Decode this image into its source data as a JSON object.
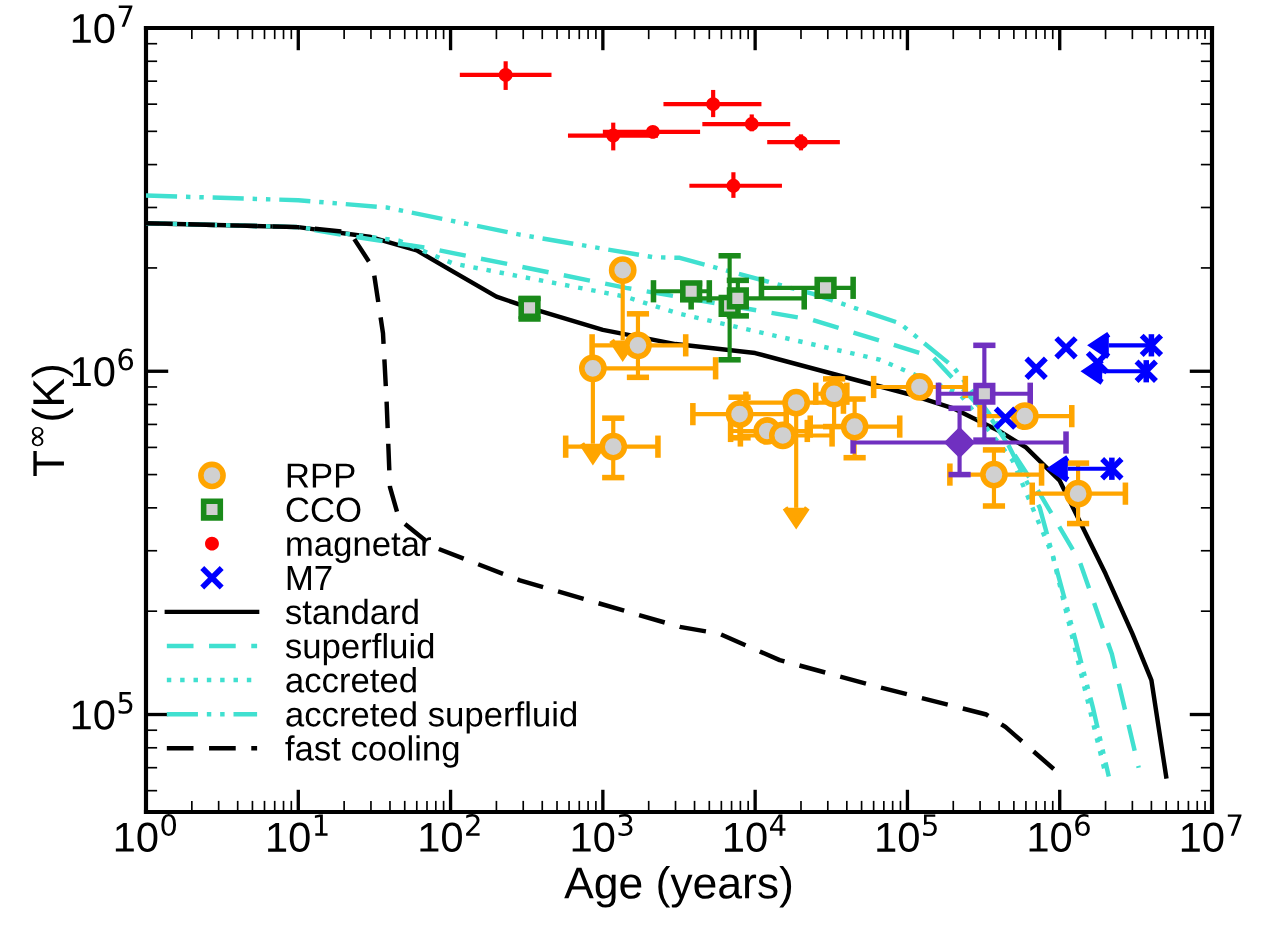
{
  "chart_data": {
    "type": "scatter",
    "xlabel": "Age (years)",
    "ylabel": "T$^{∞}$(K)",
    "log": "xy",
    "xlim": [
      1,
      10000000
    ],
    "ylim": [
      52000,
      10000000
    ],
    "xticks": [
      {
        "value": 1,
        "label": "10$^{0}$"
      },
      {
        "value": 10,
        "label": "10$^{1}$"
      },
      {
        "value": 100,
        "label": "10$^{2}$"
      },
      {
        "value": 1000,
        "label": "10$^{3}$"
      },
      {
        "value": 10000,
        "label": "10$^{4}$"
      },
      {
        "value": 100000,
        "label": "10$^{5}$"
      },
      {
        "value": 1000000,
        "label": "10$^{6}$"
      },
      {
        "value": 10000000,
        "label": "10$^{7}$"
      }
    ],
    "yticks": [
      {
        "value": 100000,
        "label": "10$^{5}$"
      },
      {
        "value": 1000000,
        "label": "10$^{6}$"
      },
      {
        "value": 10000000,
        "label": "10$^{7}$"
      }
    ],
    "grid": false,
    "legend": "bottom left",
    "series": [
      {
        "name": "RPP",
        "type": "scatter",
        "marker": "circle",
        "color": "#ffa500",
        "x": [
          1350,
          1700,
          860,
          1170,
          7900,
          18600,
          12000,
          15200,
          33000,
          45000,
          120000,
          590000,
          370000,
          1320000
        ],
        "values": [
          1970000,
          1190000,
          1020000,
          603000,
          750000,
          810000,
          670000,
          650000,
          860000,
          690000,
          900000,
          740000,
          500000,
          440000
        ],
        "errors": [
          [
            1230000,
            1970000
          ],
          [
            960000,
            1470000
          ],
          [
            615000,
            1020000
          ],
          [
            490000,
            730000
          ],
          [
            640000,
            840000
          ],
          [
            400000,
            810000
          ],
          null,
          null,
          [
            690000,
            950000
          ],
          [
            560000,
            830000
          ],
          null,
          null,
          [
            405000,
            590000
          ],
          [
            360000,
            540000
          ]
        ],
        "xerrors": [
          null,
          [
            850,
            3500
          ],
          [
            860,
            5500
          ],
          [
            570,
            2300
          ],
          [
            3900,
            16000
          ],
          [
            8700,
            38000
          ],
          [
            6900,
            22000
          ],
          [
            8000,
            32000
          ],
          [
            25000,
            40000
          ],
          [
            23000,
            89000
          ],
          [
            60000,
            240000
          ],
          [
            300000,
            1200000
          ],
          [
            190000,
            760000
          ],
          [
            660000,
            2700000
          ]
        ]
      },
      {
        "name": "CCO",
        "type": "scatter",
        "marker": "square",
        "color": "#1a8a1a",
        "x": [
          330,
          3800,
          6800,
          7700,
          29000
        ],
        "values": [
          1530000,
          1710000,
          1550000,
          1630000,
          1750000
        ],
        "errors": [
          [
            1420000,
            1630000
          ],
          [
            1620000,
            1800000
          ],
          [
            1080000,
            2170000
          ],
          [
            1450000,
            1840000
          ],
          null
        ],
        "xerrors": [
          null,
          [
            2150,
            5000
          ],
          null,
          [
            3800,
            21000
          ],
          [
            11000,
            44000
          ]
        ]
      },
      {
        "name": "magnetar",
        "type": "scatter",
        "marker": "dot",
        "color": "#ff0000",
        "x": [
          230,
          1170,
          2130,
          5300,
          9500,
          20000,
          7200
        ],
        "values": [
          7300000,
          4860000,
          4980000,
          6000000,
          5250000,
          4650000,
          3470000
        ],
        "errors": [
          [
            6600000,
            8000000
          ],
          [
            4400000,
            5300000
          ],
          null,
          [
            5500000,
            6600000
          ],
          [
            5000000,
            5600000
          ],
          [
            4400000,
            4900000
          ],
          [
            3200000,
            3800000
          ]
        ],
        "xerrors": [
          [
            115,
            460
          ],
          [
            590,
            2300
          ],
          [
            1000,
            4350
          ],
          [
            2500,
            11000
          ],
          [
            4500,
            17000
          ],
          [
            12000,
            36000
          ],
          [
            3700,
            15000
          ]
        ]
      },
      {
        "name": "M7",
        "type": "scatter",
        "marker": "cross",
        "color": "#0000ff",
        "x": [
          700000,
          1100000,
          1770000,
          4000000,
          3700000,
          440000,
          2200000
        ],
        "values": [
          1020000,
          1170000,
          1060000,
          1190000,
          1000000,
          730000,
          520000
        ],
        "xerrors": [
          null,
          null,
          null,
          [
            2100000,
            4000000
          ],
          [
            1900000,
            3700000
          ],
          null,
          [
            1130000,
            2200000
          ]
        ]
      },
      {
        "type": "scatter",
        "marker": "square",
        "color": "#7030c0",
        "x": [
          320000
        ],
        "values": [
          860000
        ],
        "errors": [
          [
            630000,
            1190000
          ]
        ],
        "xerrors": [
          [
            160000,
            640000
          ]
        ]
      },
      {
        "type": "scatter",
        "marker": "diamond",
        "color": "#7030c0",
        "x": [
          220000
        ],
        "values": [
          620000
        ],
        "errors": [
          [
            500000,
            780000
          ]
        ],
        "xerrors": [
          [
            44000,
            1100000
          ]
        ]
      },
      {
        "name": "standard",
        "type": "line",
        "line_style": "solid",
        "color": "#000000",
        "x": [
          1,
          10,
          30,
          60,
          100,
          200,
          330,
          1000,
          3000,
          10000,
          100000,
          200000,
          400000,
          600000,
          1000000,
          2000000,
          3000000,
          4000000,
          5000000
        ],
        "values": [
          2700000,
          2630000,
          2460000,
          2250000,
          1970000,
          1650000,
          1530000,
          1320000,
          1200000,
          1130000,
          860000,
          780000,
          670000,
          600000,
          480000,
          257000,
          172000,
          126000,
          66000
        ]
      },
      {
        "name": "superfluid",
        "type": "line",
        "line_style": "dashed",
        "color": "#40e0d0",
        "x": [
          1,
          10,
          19,
          69,
          285,
          1420,
          24000,
          147000,
          360000,
          740000,
          1350000,
          2200000,
          3300000
        ],
        "values": [
          2700000,
          2630000,
          2500000,
          2290000,
          2020000,
          1750000,
          1410000,
          1100000,
          720000,
          440000,
          280000,
          150000,
          70000
        ]
      },
      {
        "name": "accreted",
        "type": "line",
        "line_style": "dotted",
        "color": "#40e0d0",
        "x": [
          1,
          10,
          30,
          46,
          104,
          1400,
          3200,
          66000,
          220000,
          490000,
          900000,
          1350000,
          2000000
        ],
        "values": [
          2700000,
          2630000,
          2460000,
          2400000,
          2060000,
          1650000,
          1470000,
          1080000,
          860000,
          550000,
          290000,
          137000,
          67000
        ]
      },
      {
        "name": "accreted superfluid",
        "type": "line",
        "line_style": "dashdotdot",
        "color": "#40e0d0",
        "x": [
          1,
          10,
          38,
          285,
          2130,
          3200,
          24000,
          89000,
          200000,
          400000,
          740000,
          1100000,
          1650000,
          2100000
        ],
        "values": [
          3250000,
          3150000,
          3000000,
          2500000,
          2150000,
          2140000,
          1680000,
          1380000,
          1030000,
          690000,
          400000,
          210000,
          105000,
          66000
        ]
      },
      {
        "name": "fast cooling",
        "type": "line",
        "line_style": "dashed",
        "color": "#000000",
        "x": [
          1,
          10,
          20,
          23,
          31,
          36,
          38,
          40,
          46,
          77,
          285,
          3200,
          5800,
          14500,
          66000,
          330000,
          440000,
          1000000
        ],
        "values": [
          2700000,
          2630000,
          2550000,
          2450000,
          2000000,
          1290000,
          820000,
          460000,
          370000,
          308000,
          246000,
          180000,
          172000,
          144000,
          120000,
          100000,
          92000,
          67000
        ]
      }
    ]
  }
}
